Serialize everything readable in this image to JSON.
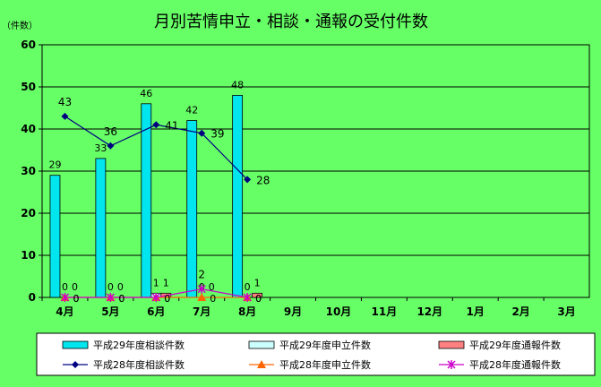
{
  "chart_data": {
    "type": "bar",
    "title": "月別苦情申立・相談・通報の受付件数",
    "ylabel": "（件数）",
    "xlabel": "",
    "ylim": [
      0,
      60
    ],
    "yticks": [
      0,
      10,
      20,
      30,
      40,
      50,
      60
    ],
    "grid": true,
    "legend_position": "bottom",
    "categories": [
      "4月",
      "5月",
      "6月",
      "7月",
      "8月",
      "9月",
      "10月",
      "11月",
      "12月",
      "1月",
      "2月",
      "3月"
    ],
    "bar_series": [
      {
        "name": "平成29年度相談件数",
        "color": "#00e5ee",
        "values": [
          29,
          33,
          46,
          42,
          48,
          null,
          null,
          null,
          null,
          null,
          null,
          null
        ]
      },
      {
        "name": "平成29年度申立件数",
        "color": "#ccffff",
        "values": [
          0,
          0,
          1,
          0,
          0,
          null,
          null,
          null,
          null,
          null,
          null,
          null
        ]
      },
      {
        "name": "平成29年度通報件数",
        "color": "#ff8080",
        "values": [
          0,
          0,
          1,
          0,
          1,
          null,
          null,
          null,
          null,
          null,
          null,
          null
        ]
      }
    ],
    "line_series": [
      {
        "name": "平成28年度相談件数",
        "color": "#000080",
        "marker": "diamond",
        "values": [
          43,
          36,
          41,
          39,
          28,
          null,
          null,
          null,
          null,
          null,
          null,
          null
        ]
      },
      {
        "name": "平成28年度申立件数",
        "color": "#ff6600",
        "marker": "triangle",
        "values": [
          0,
          0,
          0,
          0,
          0,
          null,
          null,
          null,
          null,
          null,
          null,
          null
        ]
      },
      {
        "name": "平成28年度通報件数",
        "color": "#cc00cc",
        "marker": "star",
        "values": [
          0,
          0,
          0,
          2,
          0,
          null,
          null,
          null,
          null,
          null,
          null,
          null
        ]
      }
    ]
  }
}
